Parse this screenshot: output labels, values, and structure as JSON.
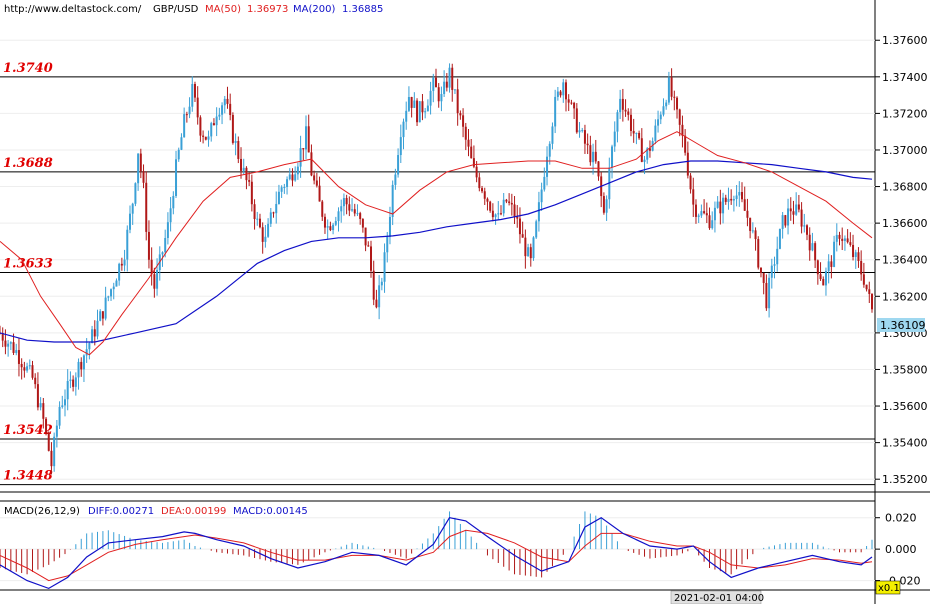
{
  "header": {
    "url": "http://www.deltastock.com/",
    "symbol": "GBP/USD",
    "ma50_label": "MA(50)",
    "ma50_value": "1.36973",
    "ma200_label": "MA(200)",
    "ma200_value": "1.36885"
  },
  "macd_header": {
    "label": "MACD(26,12,9)",
    "diff": "DIFF:0.00271",
    "dea": "DEA:0.00199",
    "macd": "MACD:0.00145"
  },
  "colors": {
    "bull": "#3aa0d6",
    "bear": "#b01818",
    "ma50": "#e02020",
    "ma200": "#1010c8",
    "level_text": "#e00000",
    "last_price_bg": "#9fd8f0"
  },
  "chart_data": {
    "type": "candlestick",
    "instrument": "GBP/USD",
    "ylim": [
      1.3513,
      1.3782
    ],
    "y_ticks": [
      "1.37600",
      "1.37400",
      "1.37200",
      "1.37000",
      "1.36800",
      "1.36600",
      "1.36400",
      "1.36200",
      "1.36000",
      "1.35800",
      "1.35600",
      "1.35400",
      "1.35200"
    ],
    "last_price": "1.36109",
    "levels": [
      {
        "label": "1.3740",
        "value": 1.374
      },
      {
        "label": "1.3688",
        "value": 1.3688
      },
      {
        "label": "1.3633",
        "value": 1.3633
      },
      {
        "label": "1.3542",
        "value": 1.3542
      },
      {
        "label": "1.3448",
        "value": 1.3517
      }
    ],
    "x_label": "2021-02-01 04:00",
    "close_path": [
      [
        0,
        1.36
      ],
      [
        6,
        1.359
      ],
      [
        12,
        1.3575
      ],
      [
        16,
        1.3552
      ],
      [
        19,
        1.3528
      ],
      [
        22,
        1.356
      ],
      [
        26,
        1.3572
      ],
      [
        30,
        1.3585
      ],
      [
        34,
        1.3598
      ],
      [
        38,
        1.3612
      ],
      [
        42,
        1.3628
      ],
      [
        46,
        1.3645
      ],
      [
        49,
        1.3672
      ],
      [
        51,
        1.37
      ],
      [
        53,
        1.3678
      ],
      [
        55,
        1.364
      ],
      [
        57,
        1.3625
      ],
      [
        59,
        1.3638
      ],
      [
        62,
        1.3658
      ],
      [
        65,
        1.369
      ],
      [
        68,
        1.3715
      ],
      [
        71,
        1.3732
      ],
      [
        74,
        1.3712
      ],
      [
        77,
        1.3705
      ],
      [
        80,
        1.3722
      ],
      [
        83,
        1.3728
      ],
      [
        86,
        1.3708
      ],
      [
        89,
        1.3692
      ],
      [
        92,
        1.3678
      ],
      [
        95,
        1.366
      ],
      [
        98,
        1.365
      ],
      [
        101,
        1.3668
      ],
      [
        104,
        1.368
      ],
      [
        107,
        1.3685
      ],
      [
        110,
        1.3695
      ],
      [
        113,
        1.3708
      ],
      [
        115,
        1.3688
      ],
      [
        118,
        1.367
      ],
      [
        121,
        1.3658
      ],
      [
        124,
        1.3665
      ],
      [
        127,
        1.3672
      ],
      [
        130,
        1.3668
      ],
      [
        133,
        1.366
      ],
      [
        136,
        1.3645
      ],
      [
        139,
        1.3612
      ],
      [
        142,
        1.364
      ],
      [
        145,
        1.368
      ],
      [
        148,
        1.3712
      ],
      [
        151,
        1.373
      ],
      [
        154,
        1.372
      ],
      [
        157,
        1.3725
      ],
      [
        160,
        1.3735
      ],
      [
        163,
        1.3728
      ],
      [
        166,
        1.3742
      ],
      [
        169,
        1.3722
      ],
      [
        172,
        1.3705
      ],
      [
        175,
        1.3688
      ],
      [
        178,
        1.368
      ],
      [
        181,
        1.367
      ],
      [
        184,
        1.3662
      ],
      [
        187,
        1.3672
      ],
      [
        190,
        1.3665
      ],
      [
        193,
        1.365
      ],
      [
        196,
        1.3638
      ],
      [
        199,
        1.3668
      ],
      [
        202,
        1.37
      ],
      [
        205,
        1.3725
      ],
      [
        208,
        1.3738
      ],
      [
        211,
        1.3722
      ],
      [
        214,
        1.371
      ],
      [
        217,
        1.37
      ],
      [
        220,
        1.3692
      ],
      [
        223,
        1.3665
      ],
      [
        226,
        1.37
      ],
      [
        229,
        1.373
      ],
      [
        232,
        1.3718
      ],
      [
        235,
        1.3705
      ],
      [
        238,
        1.3695
      ],
      [
        241,
        1.3705
      ],
      [
        244,
        1.3722
      ],
      [
        247,
        1.3735
      ],
      [
        250,
        1.3718
      ],
      [
        253,
        1.37
      ],
      [
        256,
        1.367
      ],
      [
        259,
        1.3665
      ],
      [
        262,
        1.3662
      ],
      [
        265,
        1.3668
      ],
      [
        268,
        1.3672
      ],
      [
        271,
        1.3678
      ],
      [
        274,
        1.367
      ],
      [
        277,
        1.366
      ],
      [
        280,
        1.364
      ],
      [
        283,
        1.3618
      ],
      [
        286,
        1.364
      ],
      [
        289,
        1.366
      ],
      [
        292,
        1.3668
      ],
      [
        295,
        1.3665
      ],
      [
        298,
        1.3655
      ],
      [
        301,
        1.364
      ],
      [
        304,
        1.3628
      ],
      [
        307,
        1.364
      ],
      [
        310,
        1.3655
      ],
      [
        313,
        1.3648
      ],
      [
        316,
        1.364
      ],
      [
        319,
        1.363
      ],
      [
        322,
        1.3612
      ]
    ],
    "ma50": [
      [
        0,
        1.365
      ],
      [
        8,
        1.364
      ],
      [
        15,
        1.362
      ],
      [
        22,
        1.3605
      ],
      [
        28,
        1.3592
      ],
      [
        33,
        1.3588
      ],
      [
        38,
        1.3595
      ],
      [
        45,
        1.361
      ],
      [
        55,
        1.363
      ],
      [
        65,
        1.3652
      ],
      [
        75,
        1.3672
      ],
      [
        85,
        1.3685
      ],
      [
        95,
        1.3688
      ],
      [
        105,
        1.3692
      ],
      [
        115,
        1.3695
      ],
      [
        125,
        1.368
      ],
      [
        135,
        1.367
      ],
      [
        145,
        1.3665
      ],
      [
        155,
        1.3678
      ],
      [
        165,
        1.3688
      ],
      [
        175,
        1.3692
      ],
      [
        185,
        1.3693
      ],
      [
        195,
        1.3694
      ],
      [
        205,
        1.3694
      ],
      [
        215,
        1.369
      ],
      [
        225,
        1.369
      ],
      [
        235,
        1.3695
      ],
      [
        243,
        1.3705
      ],
      [
        250,
        1.371
      ],
      [
        258,
        1.3703
      ],
      [
        265,
        1.3697
      ],
      [
        275,
        1.3693
      ],
      [
        285,
        1.3688
      ],
      [
        295,
        1.368
      ],
      [
        305,
        1.3672
      ],
      [
        315,
        1.366
      ],
      [
        322,
        1.3652
      ]
    ],
    "ma200": [
      [
        0,
        1.36
      ],
      [
        10,
        1.3596
      ],
      [
        20,
        1.3595
      ],
      [
        35,
        1.3595
      ],
      [
        50,
        1.36
      ],
      [
        65,
        1.3605
      ],
      [
        80,
        1.362
      ],
      [
        95,
        1.3638
      ],
      [
        105,
        1.3645
      ],
      [
        115,
        1.365
      ],
      [
        125,
        1.3652
      ],
      [
        135,
        1.3652
      ],
      [
        145,
        1.3653
      ],
      [
        155,
        1.3655
      ],
      [
        165,
        1.3658
      ],
      [
        175,
        1.366
      ],
      [
        185,
        1.3662
      ],
      [
        195,
        1.3665
      ],
      [
        205,
        1.367
      ],
      [
        215,
        1.3676
      ],
      [
        225,
        1.3682
      ],
      [
        235,
        1.3688
      ],
      [
        245,
        1.3692
      ],
      [
        255,
        1.3694
      ],
      [
        265,
        1.3694
      ],
      [
        275,
        1.3693
      ],
      [
        285,
        1.3692
      ],
      [
        295,
        1.369
      ],
      [
        305,
        1.3688
      ],
      [
        315,
        1.3685
      ],
      [
        322,
        1.3684
      ]
    ],
    "macd": {
      "ylim": [
        -0.026,
        0.03
      ],
      "y_ticks": [
        "0.020",
        "0.000",
        "-0.020"
      ],
      "multiplier_label": "x0.1",
      "diff": [
        [
          0,
          -0.01
        ],
        [
          10,
          -0.02
        ],
        [
          18,
          -0.025
        ],
        [
          25,
          -0.018
        ],
        [
          32,
          -0.005
        ],
        [
          40,
          0.004
        ],
        [
          50,
          0.006
        ],
        [
          60,
          0.008
        ],
        [
          68,
          0.011
        ],
        [
          72,
          0.01
        ],
        [
          80,
          0.006
        ],
        [
          90,
          0.002
        ],
        [
          100,
          -0.006
        ],
        [
          110,
          -0.012
        ],
        [
          120,
          -0.008
        ],
        [
          130,
          -0.002
        ],
        [
          140,
          -0.004
        ],
        [
          150,
          -0.01
        ],
        [
          160,
          0.003
        ],
        [
          166,
          0.02
        ],
        [
          172,
          0.018
        ],
        [
          180,
          0.008
        ],
        [
          190,
          -0.004
        ],
        [
          200,
          -0.014
        ],
        [
          210,
          -0.008
        ],
        [
          216,
          0.014
        ],
        [
          222,
          0.02
        ],
        [
          230,
          0.01
        ],
        [
          240,
          0.002
        ],
        [
          250,
          0.0
        ],
        [
          256,
          0.002
        ],
        [
          262,
          -0.008
        ],
        [
          270,
          -0.018
        ],
        [
          280,
          -0.012
        ],
        [
          290,
          -0.008
        ],
        [
          300,
          -0.004
        ],
        [
          310,
          -0.008
        ],
        [
          318,
          -0.01
        ],
        [
          322,
          -0.005
        ]
      ],
      "dea": [
        [
          0,
          -0.004
        ],
        [
          10,
          -0.012
        ],
        [
          18,
          -0.02
        ],
        [
          25,
          -0.017
        ],
        [
          32,
          -0.01
        ],
        [
          40,
          -0.002
        ],
        [
          50,
          0.003
        ],
        [
          60,
          0.006
        ],
        [
          68,
          0.008
        ],
        [
          72,
          0.009
        ],
        [
          80,
          0.007
        ],
        [
          90,
          0.004
        ],
        [
          100,
          -0.002
        ],
        [
          110,
          -0.007
        ],
        [
          120,
          -0.007
        ],
        [
          130,
          -0.004
        ],
        [
          140,
          -0.004
        ],
        [
          150,
          -0.007
        ],
        [
          160,
          -0.002
        ],
        [
          166,
          0.008
        ],
        [
          172,
          0.012
        ],
        [
          180,
          0.01
        ],
        [
          190,
          0.004
        ],
        [
          200,
          -0.005
        ],
        [
          210,
          -0.008
        ],
        [
          216,
          0.002
        ],
        [
          222,
          0.01
        ],
        [
          230,
          0.01
        ],
        [
          240,
          0.005
        ],
        [
          250,
          0.002
        ],
        [
          256,
          0.002
        ],
        [
          262,
          -0.002
        ],
        [
          270,
          -0.01
        ],
        [
          280,
          -0.012
        ],
        [
          290,
          -0.01
        ],
        [
          300,
          -0.006
        ],
        [
          310,
          -0.007
        ],
        [
          318,
          -0.009
        ],
        [
          322,
          -0.008
        ]
      ]
    }
  }
}
